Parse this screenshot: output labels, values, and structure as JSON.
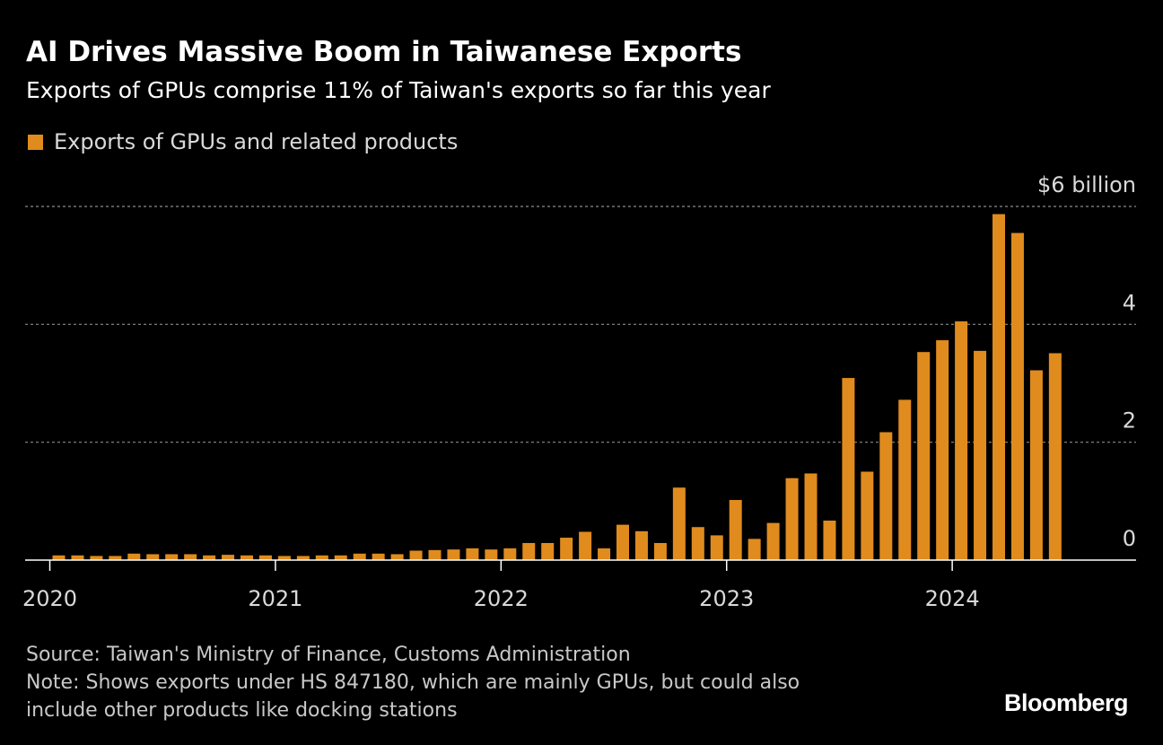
{
  "header": {
    "title": "AI Drives Massive Boom in Taiwanese Exports",
    "subtitle": "Exports of GPUs comprise 11% of Taiwan's exports so far this year"
  },
  "legend": {
    "label": "Exports of GPUs and related products",
    "color": "#e08b1e"
  },
  "chart_data": {
    "type": "bar",
    "title": "AI Drives Massive Boom in Taiwanese Exports",
    "subtitle": "Exports of GPUs comprise 11% of Taiwan's exports so far this year",
    "xlabel": "",
    "ylabel": "$ billion",
    "ylim": [
      0,
      6
    ],
    "y_ticks": [
      {
        "value": 0,
        "label": "0"
      },
      {
        "value": 2,
        "label": "2"
      },
      {
        "value": 4,
        "label": "4"
      },
      {
        "value": 6,
        "label": "$6 billion"
      }
    ],
    "x_ticks": [
      {
        "index": 0,
        "label": "2020"
      },
      {
        "index": 12,
        "label": "2021"
      },
      {
        "index": 24,
        "label": "2022"
      },
      {
        "index": 36,
        "label": "2023"
      },
      {
        "index": 48,
        "label": "2024"
      }
    ],
    "grid": true,
    "legend_position": "top-left",
    "categories": [
      "2020-01",
      "2020-02",
      "2020-03",
      "2020-04",
      "2020-05",
      "2020-06",
      "2020-07",
      "2020-08",
      "2020-09",
      "2020-10",
      "2020-11",
      "2020-12",
      "2021-01",
      "2021-02",
      "2021-03",
      "2021-04",
      "2021-05",
      "2021-06",
      "2021-07",
      "2021-08",
      "2021-09",
      "2021-10",
      "2021-11",
      "2021-12",
      "2022-01",
      "2022-02",
      "2022-03",
      "2022-04",
      "2022-05",
      "2022-06",
      "2022-07",
      "2022-08",
      "2022-09",
      "2022-10",
      "2022-11",
      "2022-12",
      "2023-01",
      "2023-02",
      "2023-03",
      "2023-04",
      "2023-05",
      "2023-06",
      "2023-07",
      "2023-08",
      "2023-09",
      "2023-10",
      "2023-11",
      "2023-12",
      "2024-01",
      "2024-02",
      "2024-03",
      "2024-04",
      "2024-05",
      "2024-06"
    ],
    "series": [
      {
        "name": "Exports of GPUs and related products",
        "color": "#e08b1e",
        "values": [
          0.08,
          0.08,
          0.07,
          0.07,
          0.11,
          0.1,
          0.1,
          0.1,
          0.08,
          0.09,
          0.08,
          0.08,
          0.07,
          0.07,
          0.08,
          0.08,
          0.11,
          0.11,
          0.1,
          0.16,
          0.17,
          0.18,
          0.2,
          0.18,
          0.2,
          0.29,
          0.29,
          0.38,
          0.48,
          0.2,
          0.6,
          0.49,
          0.29,
          1.23,
          0.56,
          0.42,
          1.02,
          0.36,
          0.63,
          1.39,
          1.47,
          0.67,
          3.09,
          1.5,
          2.17,
          2.72,
          3.53,
          3.73,
          4.05,
          3.55,
          5.87,
          5.55,
          3.22,
          3.51
        ]
      }
    ]
  },
  "footer": {
    "source": "Source: Taiwan's Ministry of Finance, Customs Administration",
    "note_line1": "Note: Shows exports under HS 847180, which are mainly GPUs, but could also",
    "note_line2": "include other products like docking stations",
    "brand": "Bloomberg"
  },
  "colors": {
    "background": "#000000",
    "bar": "#e08b1e",
    "grid": "#8c8c8c",
    "axis": "#ffffff",
    "tick_text": "#d9d9d9"
  }
}
